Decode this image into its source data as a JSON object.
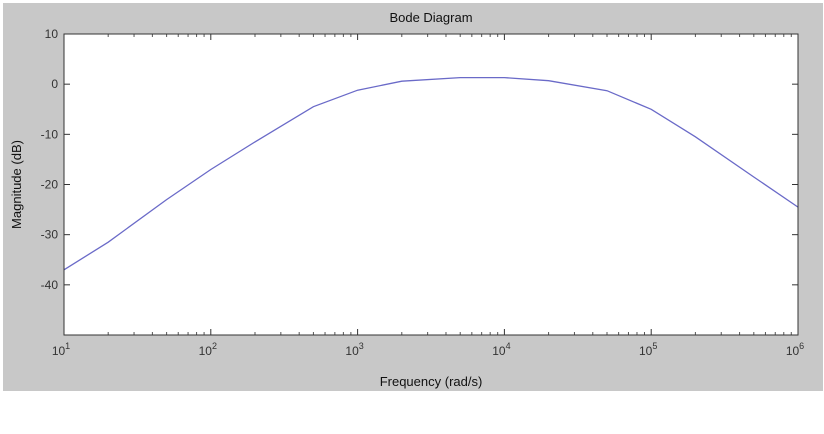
{
  "chart_data": {
    "type": "line",
    "title": "Bode Diagram",
    "xlabel": "Frequency  (rad/s)",
    "ylabel": "Magnitude (dB)",
    "x_scale": "log",
    "xlim": [
      10,
      1000000
    ],
    "ylim": [
      -50,
      10
    ],
    "x_ticks": [
      {
        "base": "10",
        "exp": "1",
        "value": 10
      },
      {
        "base": "10",
        "exp": "2",
        "value": 100
      },
      {
        "base": "10",
        "exp": "3",
        "value": 1000
      },
      {
        "base": "10",
        "exp": "4",
        "value": 10000
      },
      {
        "base": "10",
        "exp": "5",
        "value": 100000
      },
      {
        "base": "10",
        "exp": "6",
        "value": 1000000
      }
    ],
    "y_ticks": [
      {
        "label": "10",
        "value": 10
      },
      {
        "label": "0",
        "value": 0
      },
      {
        "label": "-10",
        "value": -10
      },
      {
        "label": "-20",
        "value": -20
      },
      {
        "label": "-30",
        "value": -30
      },
      {
        "label": "-40",
        "value": -40
      }
    ],
    "grid": false,
    "series": [
      {
        "color": "#6a6ac8",
        "x": [
          10,
          20,
          50,
          100,
          200,
          500,
          1000,
          2000,
          5000,
          10000,
          20000,
          50000,
          100000,
          200000,
          500000,
          1000000
        ],
        "y": [
          -37,
          -31.5,
          -23,
          -17,
          -11.5,
          -4.5,
          -1.2,
          0.6,
          1.3,
          1.3,
          0.7,
          -1.3,
          -5,
          -10.5,
          -18.5,
          -24.5
        ]
      }
    ]
  }
}
